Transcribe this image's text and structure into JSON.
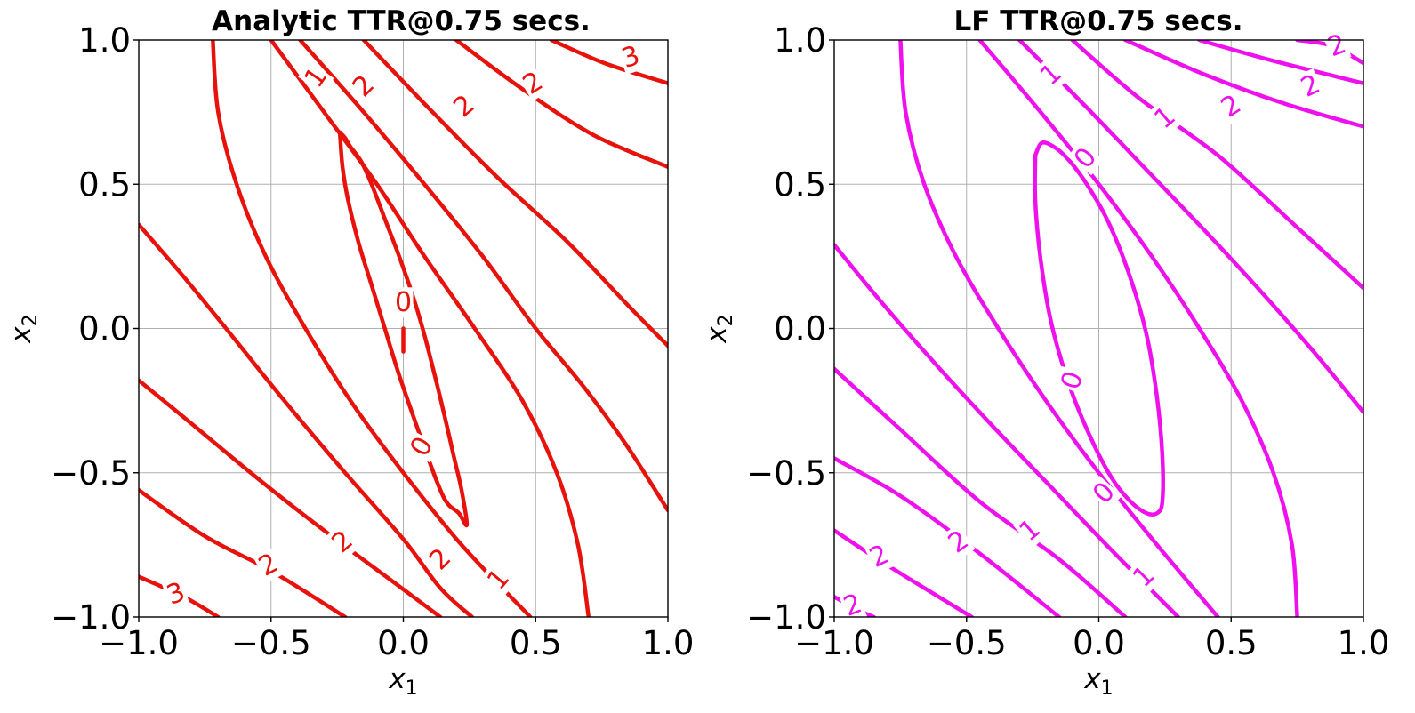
{
  "chart_data": [
    {
      "type": "contour",
      "title": "Analytic TTR@0.75 secs.",
      "xlabel": "x",
      "xlabel_sub": "1",
      "ylabel": "x",
      "ylabel_sub": "2",
      "xlim": [
        -1.0,
        1.0
      ],
      "ylim": [
        -1.0,
        1.0
      ],
      "xticks": [
        "−1.0",
        "−0.5",
        "0.0",
        "0.5",
        "1.0"
      ],
      "yticks": [
        "1.0",
        "0.5",
        "0.0",
        "−0.5",
        "−1.0"
      ],
      "grid": true,
      "color": "#e8120c",
      "contours": [
        {
          "level": "0",
          "points": [
            [
              -0.24,
              0.68
            ],
            [
              -0.22,
              0.66
            ],
            [
              -0.2,
              0.63
            ],
            [
              -0.16,
              0.58
            ],
            [
              -0.12,
              0.5
            ],
            [
              -0.07,
              0.38
            ],
            [
              -0.02,
              0.26
            ],
            [
              0.03,
              0.13
            ],
            [
              0.07,
              0.01
            ],
            [
              0.11,
              -0.13
            ],
            [
              0.15,
              -0.28
            ],
            [
              0.19,
              -0.44
            ],
            [
              0.22,
              -0.56
            ],
            [
              0.24,
              -0.68
            ],
            [
              0.21,
              -0.64
            ],
            [
              0.17,
              -0.61
            ],
            [
              0.14,
              -0.56
            ],
            [
              0.09,
              -0.44
            ],
            [
              0.04,
              -0.31
            ],
            [
              -0.02,
              -0.15
            ],
            [
              -0.07,
              0.0
            ],
            [
              -0.12,
              0.15
            ],
            [
              -0.17,
              0.3
            ],
            [
              -0.21,
              0.45
            ],
            [
              -0.23,
              0.56
            ],
            [
              -0.24,
              0.68
            ]
          ]
        },
        {
          "level": "0",
          "points": [
            [
              0.0,
              0.0
            ],
            [
              0.0,
              -0.08
            ]
          ]
        },
        {
          "level": "1",
          "points": [
            [
              -0.5,
              1.0
            ],
            [
              -0.3,
              0.75
            ],
            [
              -0.1,
              0.5
            ],
            [
              0.08,
              0.25
            ],
            [
              0.27,
              0.0
            ],
            [
              0.45,
              -0.25
            ],
            [
              0.58,
              -0.5
            ],
            [
              0.66,
              -0.75
            ],
            [
              0.7,
              -1.0
            ]
          ]
        },
        {
          "level": "1",
          "points": [
            [
              -0.72,
              1.0
            ],
            [
              -0.7,
              0.75
            ],
            [
              -0.63,
              0.5
            ],
            [
              -0.52,
              0.25
            ],
            [
              -0.37,
              0.0
            ],
            [
              -0.2,
              -0.25
            ],
            [
              0.0,
              -0.5
            ],
            [
              0.22,
              -0.75
            ],
            [
              0.48,
              -1.0
            ]
          ]
        },
        {
          "level": "2",
          "points": [
            [
              -0.39,
              1.0
            ],
            [
              -0.15,
              0.75
            ],
            [
              0.08,
              0.5
            ],
            [
              0.3,
              0.25
            ],
            [
              0.5,
              0.0
            ],
            [
              0.68,
              -0.2
            ],
            [
              0.84,
              -0.4
            ],
            [
              1.0,
              -0.63
            ]
          ]
        },
        {
          "level": "2",
          "points": [
            [
              -1.0,
              0.36
            ],
            [
              -0.84,
              0.19
            ],
            [
              -0.67,
              0.0
            ],
            [
              -0.45,
              -0.25
            ],
            [
              -0.22,
              -0.5
            ],
            [
              0.0,
              -0.73
            ],
            [
              0.14,
              -0.9
            ],
            [
              0.26,
              -1.0
            ]
          ]
        },
        {
          "level": "2",
          "points": [
            [
              -0.15,
              1.0
            ],
            [
              0.1,
              0.76
            ],
            [
              0.36,
              0.52
            ],
            [
              0.62,
              0.3
            ],
            [
              0.86,
              0.07
            ],
            [
              1.0,
              -0.06
            ]
          ]
        },
        {
          "level": "2",
          "points": [
            [
              -1.0,
              -0.18
            ],
            [
              -0.8,
              -0.33
            ],
            [
              -0.55,
              -0.52
            ],
            [
              -0.3,
              -0.7
            ],
            [
              -0.05,
              -0.87
            ],
            [
              0.14,
              -1.0
            ]
          ]
        },
        {
          "level": "2",
          "points": [
            [
              0.2,
              1.0
            ],
            [
              0.45,
              0.83
            ],
            [
              0.72,
              0.67
            ],
            [
              1.0,
              0.56
            ]
          ]
        },
        {
          "level": "2",
          "points": [
            [
              -1.0,
              -0.56
            ],
            [
              -0.75,
              -0.72
            ],
            [
              -0.5,
              -0.84
            ],
            [
              -0.22,
              -1.0
            ]
          ]
        },
        {
          "level": "3",
          "points": [
            [
              0.56,
              1.0
            ],
            [
              0.76,
              0.92
            ],
            [
              1.0,
              0.85
            ]
          ]
        },
        {
          "level": "3",
          "points": [
            [
              -1.0,
              -0.86
            ],
            [
              -0.83,
              -0.93
            ],
            [
              -0.7,
              -1.0
            ]
          ]
        }
      ],
      "contour_labels": [
        {
          "text": "0",
          "x": 0.0,
          "y": 0.09,
          "rot": 0
        },
        {
          "text": "0",
          "x": 0.07,
          "y": -0.41,
          "rot": -60
        },
        {
          "text": "1",
          "x": -0.33,
          "y": 0.87,
          "rot": -55
        },
        {
          "text": "1",
          "x": 0.36,
          "y": -0.87,
          "rot": -50
        },
        {
          "text": "2",
          "x": -0.15,
          "y": 0.84,
          "rot": -45
        },
        {
          "text": "2",
          "x": 0.23,
          "y": 0.77,
          "rot": -40
        },
        {
          "text": "2",
          "x": 0.49,
          "y": 0.85,
          "rot": -32
        },
        {
          "text": "2",
          "x": -0.23,
          "y": -0.74,
          "rot": -40
        },
        {
          "text": "2",
          "x": 0.14,
          "y": -0.8,
          "rot": -45
        },
        {
          "text": "2",
          "x": -0.51,
          "y": -0.82,
          "rot": -28
        },
        {
          "text": "3",
          "x": 0.86,
          "y": 0.94,
          "rot": -18
        },
        {
          "text": "3",
          "x": -0.86,
          "y": -0.92,
          "rot": -20
        }
      ]
    },
    {
      "type": "contour",
      "title": "LF TTR@0.75 secs.",
      "xlabel": "x",
      "xlabel_sub": "1",
      "ylabel": "x",
      "ylabel_sub": "2",
      "xlim": [
        -1.0,
        1.0
      ],
      "ylim": [
        -1.0,
        1.0
      ],
      "xticks": [
        "−1.0",
        "−0.5",
        "0.0",
        "0.5",
        "1.0"
      ],
      "yticks": [
        "1.0",
        "0.5",
        "0.0",
        "−0.5",
        "−1.0"
      ],
      "grid": true,
      "color": "#ee11ee",
      "contours": [
        {
          "level": "0",
          "points": [
            [
              -0.24,
              0.6
            ],
            [
              -0.22,
              0.64
            ],
            [
              -0.19,
              0.64
            ],
            [
              -0.13,
              0.6
            ],
            [
              -0.06,
              0.52
            ],
            [
              0.03,
              0.38
            ],
            [
              0.11,
              0.2
            ],
            [
              0.18,
              -0.02
            ],
            [
              0.22,
              -0.24
            ],
            [
              0.24,
              -0.44
            ],
            [
              0.24,
              -0.6
            ],
            [
              0.22,
              -0.64
            ],
            [
              0.18,
              -0.64
            ],
            [
              0.12,
              -0.6
            ],
            [
              0.05,
              -0.52
            ],
            [
              -0.03,
              -0.38
            ],
            [
              -0.11,
              -0.2
            ],
            [
              -0.18,
              0.02
            ],
            [
              -0.22,
              0.24
            ],
            [
              -0.24,
              0.44
            ],
            [
              -0.24,
              0.6
            ]
          ]
        },
        {
          "level": "0",
          "points": [
            [
              -0.45,
              1.0
            ],
            [
              -0.22,
              0.75
            ],
            [
              0.0,
              0.5
            ],
            [
              0.2,
              0.25
            ],
            [
              0.38,
              0.0
            ],
            [
              0.54,
              -0.25
            ],
            [
              0.66,
              -0.5
            ],
            [
              0.73,
              -0.75
            ],
            [
              0.75,
              -1.0
            ]
          ]
        },
        {
          "level": "0",
          "points": [
            [
              -0.75,
              1.0
            ],
            [
              -0.73,
              0.75
            ],
            [
              -0.66,
              0.5
            ],
            [
              -0.54,
              0.25
            ],
            [
              -0.38,
              0.0
            ],
            [
              -0.2,
              -0.25
            ],
            [
              0.0,
              -0.5
            ],
            [
              0.22,
              -0.75
            ],
            [
              0.45,
              -1.0
            ]
          ]
        },
        {
          "level": "1",
          "points": [
            [
              -0.3,
              1.0
            ],
            [
              -0.05,
              0.77
            ],
            [
              0.18,
              0.55
            ],
            [
              0.42,
              0.32
            ],
            [
              0.64,
              0.1
            ],
            [
              0.83,
              -0.1
            ],
            [
              1.0,
              -0.29
            ]
          ]
        },
        {
          "level": "1",
          "points": [
            [
              -1.0,
              0.29
            ],
            [
              -0.83,
              0.1
            ],
            [
              -0.64,
              -0.1
            ],
            [
              -0.42,
              -0.32
            ],
            [
              -0.18,
              -0.55
            ],
            [
              0.05,
              -0.77
            ],
            [
              0.3,
              -1.0
            ]
          ]
        },
        {
          "level": "2",
          "points": [
            [
              -0.1,
              1.0
            ],
            [
              0.15,
              0.8
            ],
            [
              0.45,
              0.6
            ],
            [
              0.75,
              0.35
            ],
            [
              1.0,
              0.14
            ]
          ]
        },
        {
          "level": "2",
          "points": [
            [
              -1.0,
              -0.14
            ],
            [
              -0.75,
              -0.35
            ],
            [
              -0.45,
              -0.6
            ],
            [
              -0.15,
              -0.8
            ],
            [
              0.1,
              -1.0
            ]
          ]
        },
        {
          "level": "2",
          "points": [
            [
              0.1,
              1.0
            ],
            [
              0.4,
              0.88
            ],
            [
              0.7,
              0.78
            ],
            [
              1.0,
              0.7
            ]
          ]
        },
        {
          "level": "2",
          "points": [
            [
              -1.0,
              -0.45
            ],
            [
              -0.75,
              -0.58
            ],
            [
              -0.45,
              -0.78
            ],
            [
              -0.15,
              -1.0
            ]
          ]
        },
        {
          "level": "2",
          "points": [
            [
              0.38,
              1.0
            ],
            [
              0.65,
              0.93
            ],
            [
              1.0,
              0.85
            ]
          ]
        },
        {
          "level": "2",
          "points": [
            [
              -1.0,
              -0.7
            ],
            [
              -0.8,
              -0.82
            ],
            [
              -0.48,
              -1.0
            ]
          ]
        },
        {
          "level": "2",
          "points": [
            [
              0.75,
              1.0
            ],
            [
              0.88,
              0.98
            ],
            [
              1.0,
              0.92
            ]
          ]
        },
        {
          "level": "2",
          "points": [
            [
              -1.0,
              -0.93
            ],
            [
              -0.9,
              -0.98
            ],
            [
              -0.85,
              -1.0
            ]
          ]
        }
      ],
      "contour_labels": [
        {
          "text": "0",
          "x": -0.05,
          "y": 0.59,
          "rot": -52
        },
        {
          "text": "0",
          "x": -0.1,
          "y": -0.18,
          "rot": -70
        },
        {
          "text": "0",
          "x": 0.02,
          "y": -0.57,
          "rot": -48
        },
        {
          "text": "1",
          "x": -0.18,
          "y": 0.88,
          "rot": -42
        },
        {
          "text": "1",
          "x": 0.25,
          "y": 0.73,
          "rot": -40
        },
        {
          "text": "1",
          "x": -0.26,
          "y": -0.7,
          "rot": -40
        },
        {
          "text": "1",
          "x": 0.17,
          "y": -0.86,
          "rot": -45
        },
        {
          "text": "2",
          "x": 0.5,
          "y": 0.77,
          "rot": -32
        },
        {
          "text": "2",
          "x": 0.8,
          "y": 0.84,
          "rot": -25
        },
        {
          "text": "2",
          "x": 0.9,
          "y": 0.98,
          "rot": -20
        },
        {
          "text": "2",
          "x": -0.53,
          "y": -0.74,
          "rot": -35
        },
        {
          "text": "2",
          "x": -0.83,
          "y": -0.79,
          "rot": -25
        },
        {
          "text": "2",
          "x": -0.93,
          "y": -0.96,
          "rot": -20
        }
      ]
    }
  ]
}
